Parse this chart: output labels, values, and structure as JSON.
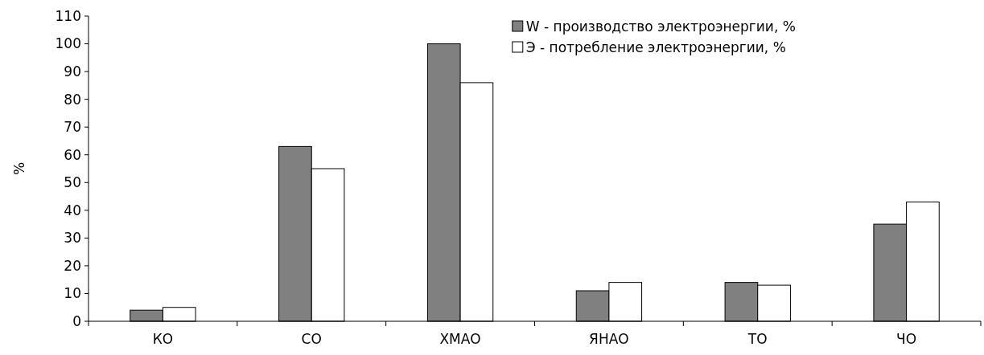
{
  "chart_data": {
    "type": "bar",
    "ylabel": "%",
    "categories": [
      "КО",
      "СО",
      "ХМАО",
      "ЯНАО",
      "ТО",
      "ЧО"
    ],
    "series": [
      {
        "name": "W - производство электроэнергии, %",
        "color": "#808080",
        "values": [
          4,
          63,
          100,
          11,
          14,
          35
        ]
      },
      {
        "name": "Э - потребление электроэнергии, %",
        "color": "#ffffff",
        "values": [
          5,
          55,
          86,
          14,
          13,
          43
        ]
      }
    ],
    "ylim": [
      0,
      110
    ],
    "yticks": [
      0,
      10,
      20,
      30,
      40,
      50,
      60,
      70,
      80,
      90,
      100,
      110
    ],
    "legend": "top right"
  }
}
